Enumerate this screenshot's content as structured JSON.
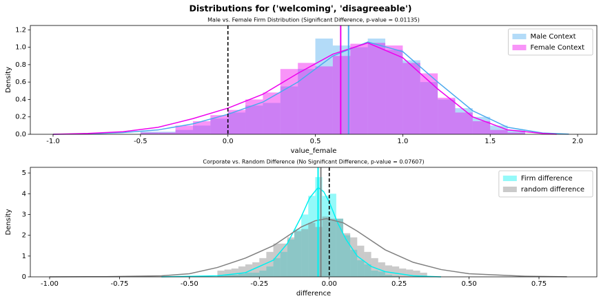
{
  "title": "Distributions for ('welcoming', 'disagreeable')",
  "chart_data": [
    {
      "type": "histogram",
      "title": "Male vs. Female Firm Distribution (Significant Difference, p-value = 0.01135)",
      "x_label": "value_female",
      "y_label": "Density",
      "xlim": [
        -1.13,
        2.11
      ],
      "ylim": [
        0,
        1.25
      ],
      "xticks": [
        {
          "value": -1,
          "label": "-1.0"
        },
        -0.5,
        {
          "value": 0,
          "label": "0.0"
        },
        0.5,
        {
          "value": 1,
          "label": "1.0"
        },
        1.5,
        {
          "value": 2,
          "label": "2.0"
        }
      ],
      "yticks": [
        {
          "value": 0,
          "label": "0.0"
        },
        0.2,
        0.4,
        0.6,
        0.8,
        {
          "value": 1,
          "label": "1.0"
        },
        1.2
      ],
      "legend": "upper right",
      "reference_line": 0,
      "bins": [
        -0.5,
        -0.4,
        -0.3,
        -0.2,
        -0.1,
        0,
        0.1,
        0.2,
        0.3,
        0.4,
        0.5,
        0.6,
        0.7,
        0.8,
        0.9,
        1.0,
        1.1,
        1.2,
        1.3,
        1.4,
        1.5,
        1.6,
        1.7
      ],
      "series": [
        {
          "name": "Male Context",
          "color": "#4aa9ee",
          "mean": 0.69,
          "values": [
            0.03,
            0.03,
            0.05,
            0.1,
            0.18,
            0.25,
            0.33,
            0.36,
            0.55,
            0.75,
            1.1,
            1.02,
            1.0,
            1.1,
            0.97,
            0.85,
            0.6,
            0.4,
            0.3,
            0.2,
            0.1,
            0.05
          ],
          "kde": {
            "x": [
              -1.0,
              -0.8,
              -0.6,
              -0.4,
              -0.2,
              0,
              0.2,
              0.4,
              0.6,
              0.8,
              1.0,
              1.2,
              1.4,
              1.6,
              1.8,
              1.95
            ],
            "values": [
              0.0,
              0.005,
              0.02,
              0.05,
              0.12,
              0.23,
              0.37,
              0.6,
              0.9,
              1.06,
              0.95,
              0.6,
              0.27,
              0.08,
              0.015,
              0.002
            ]
          }
        },
        {
          "name": "Female Context",
          "color": "#ee00ee",
          "mean": 0.645,
          "values": [
            0.02,
            0.02,
            0.1,
            0.15,
            0.22,
            0.28,
            0.4,
            0.48,
            0.75,
            0.82,
            0.78,
            0.9,
            1.04,
            1.05,
            1.02,
            0.82,
            0.7,
            0.42,
            0.25,
            0.15,
            0.05,
            0.02
          ],
          "kde": {
            "x": [
              -1.0,
              -0.8,
              -0.6,
              -0.4,
              -0.2,
              0,
              0.2,
              0.4,
              0.6,
              0.8,
              1.0,
              1.2,
              1.4,
              1.6,
              1.8,
              1.88
            ],
            "values": [
              0.0,
              0.01,
              0.03,
              0.08,
              0.18,
              0.3,
              0.46,
              0.7,
              0.92,
              1.05,
              0.88,
              0.52,
              0.2,
              0.05,
              0.01,
              0.001
            ]
          }
        }
      ]
    },
    {
      "type": "histogram",
      "title": "Corporate vs. Random Difference (No Significant Difference, p-value = 0.07607)",
      "x_label": "difference",
      "y_label": "Density",
      "xlim": [
        -1.069,
        0.957
      ],
      "ylim": [
        0,
        5.27
      ],
      "xticks": [
        {
          "value": -1,
          "label": "-1.00"
        },
        -0.75,
        {
          "value": -0.5,
          "label": "-0.50"
        },
        -0.25,
        {
          "value": 0,
          "label": "0.00"
        },
        0.25,
        {
          "value": 0.5,
          "label": "0.50"
        },
        0.75
      ],
      "yticks": [
        0,
        1,
        2,
        3,
        4,
        5
      ],
      "legend": "upper right",
      "reference_line": 0,
      "bins": [
        -0.4,
        -0.375,
        -0.35,
        -0.325,
        -0.3,
        -0.275,
        -0.25,
        -0.225,
        -0.2,
        -0.175,
        -0.15,
        -0.125,
        -0.1,
        -0.075,
        -0.05,
        -0.025,
        0,
        0.025,
        0.05,
        0.075,
        0.1,
        0.125,
        0.15,
        0.175,
        0.2,
        0.225,
        0.25,
        0.275,
        0.3,
        0.325,
        0.35
      ],
      "series": [
        {
          "name": "Firm difference",
          "color": "#00f0f0",
          "mean": -0.04,
          "values": [
            0.05,
            0.1,
            0.1,
            0.15,
            0.2,
            0.2,
            0.3,
            0.5,
            0.9,
            1.2,
            1.8,
            2.3,
            3.0,
            3.9,
            4.8,
            3.9,
            4.0,
            2.8,
            2.0,
            1.3,
            0.8,
            0.6,
            0.3,
            0.25,
            0.1,
            0.05,
            0,
            0,
            0,
            0
          ],
          "kde": {
            "x": [
              -0.6,
              -0.4,
              -0.3,
              -0.2,
              -0.15,
              -0.1,
              -0.07,
              -0.04,
              -0.02,
              0,
              0.03,
              0.06,
              0.1,
              0.15,
              0.2,
              0.3,
              0.4
            ],
            "values": [
              0,
              0.05,
              0.2,
              0.8,
              1.6,
              2.9,
              3.8,
              4.3,
              4.1,
              3.6,
              2.6,
              1.8,
              1.0,
              0.5,
              0.25,
              0.05,
              0
            ]
          }
        },
        {
          "name": "random difference",
          "color": "#808080",
          "mean": -0.03,
          "values": [
            0.3,
            0.35,
            0.4,
            0.5,
            0.6,
            0.7,
            0.9,
            1.2,
            1.6,
            1.6,
            1.9,
            2.2,
            2.3,
            2.6,
            2.4,
            2.9,
            2.8,
            2.8,
            2.1,
            1.9,
            1.5,
            1.2,
            0.9,
            0.7,
            0.55,
            0.5,
            0.4,
            0.35,
            0.3,
            0.2
          ],
          "kde": {
            "x": [
              -1.0,
              -0.8,
              -0.6,
              -0.5,
              -0.4,
              -0.3,
              -0.2,
              -0.1,
              -0.05,
              -0.01,
              0.05,
              0.1,
              0.2,
              0.3,
              0.4,
              0.5,
              0.7,
              0.85
            ],
            "values": [
              0,
              0.01,
              0.05,
              0.15,
              0.45,
              0.9,
              1.5,
              2.4,
              2.7,
              2.8,
              2.6,
              2.2,
              1.3,
              0.7,
              0.35,
              0.15,
              0.03,
              0.005
            ]
          }
        }
      ]
    }
  ]
}
